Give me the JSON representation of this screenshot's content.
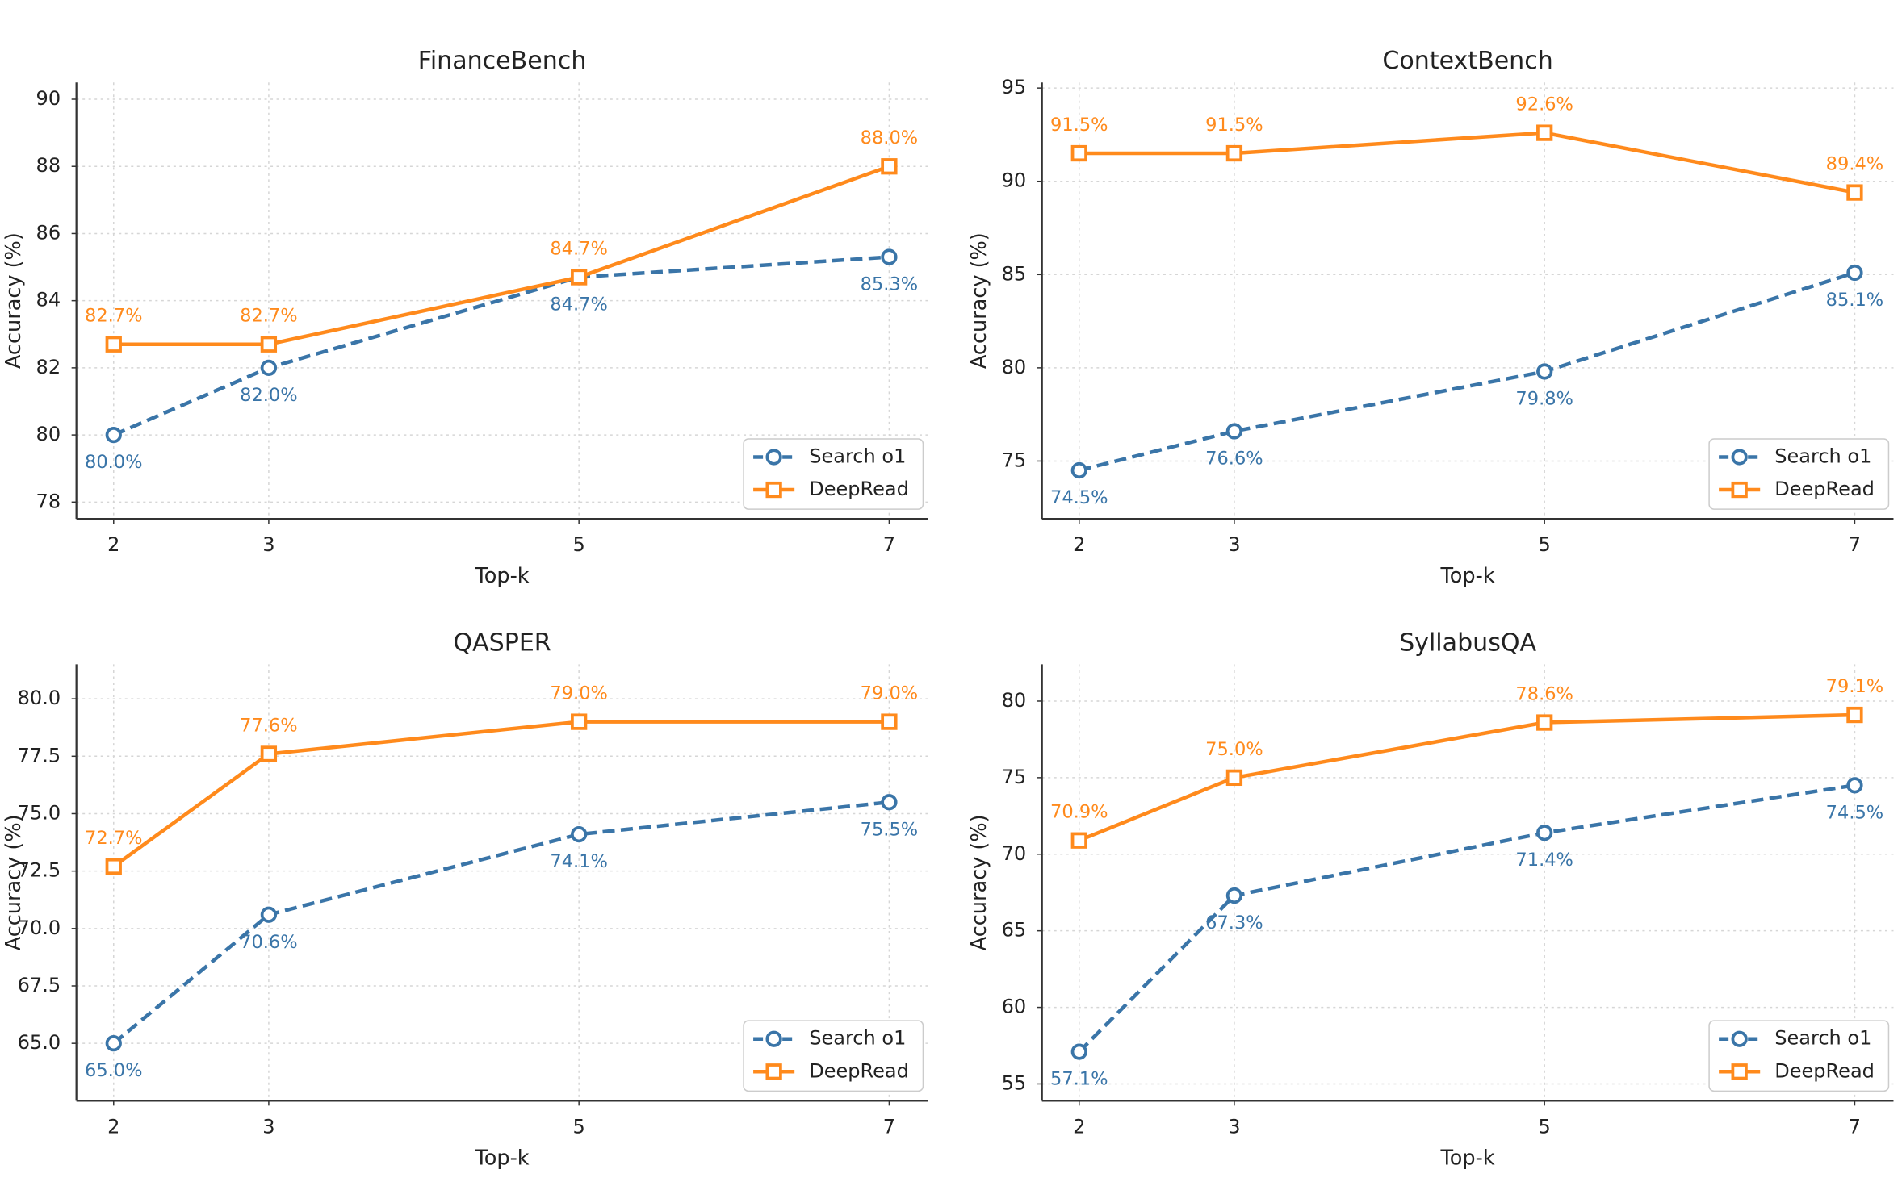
{
  "chart_data": [
    {
      "type": "line",
      "title": "FinanceBench",
      "xlabel": "Top-k",
      "ylabel": "Accuracy (%)",
      "x": [
        2,
        3,
        5,
        7
      ],
      "xlim": [
        1.76,
        7.25
      ],
      "xticks": [
        2,
        3,
        5,
        7
      ],
      "ylim": [
        77.5,
        90.5
      ],
      "yticks": [
        78,
        80,
        82,
        84,
        86,
        88,
        90
      ],
      "grid": true,
      "legend": "lower right",
      "series": [
        {
          "name": "Search o1",
          "color": "#3a75a8",
          "linestyle": "dashed",
          "marker": "circle",
          "label_position": "below",
          "values": [
            80.0,
            82.0,
            84.7,
            85.3
          ],
          "value_labels": [
            "80.0%",
            "82.0%",
            "84.7%",
            "85.3%"
          ]
        },
        {
          "name": "DeepRead",
          "color": "#ff8a1c",
          "linestyle": "solid",
          "marker": "square",
          "label_position": "above",
          "values": [
            82.7,
            82.7,
            84.7,
            88.0
          ],
          "value_labels": [
            "82.7%",
            "82.7%",
            "84.7%",
            "88.0%"
          ]
        }
      ]
    },
    {
      "type": "line",
      "title": "ContextBench",
      "xlabel": "Top-k",
      "ylabel": "Accuracy (%)",
      "x": [
        2,
        3,
        5,
        7
      ],
      "xlim": [
        1.76,
        7.25
      ],
      "xticks": [
        2,
        3,
        5,
        7
      ],
      "ylim": [
        71.9,
        95.3
      ],
      "yticks": [
        75,
        80,
        85,
        90,
        95
      ],
      "grid": true,
      "legend": "lower right",
      "series": [
        {
          "name": "Search o1",
          "color": "#3a75a8",
          "linestyle": "dashed",
          "marker": "circle",
          "label_position": "below",
          "values": [
            74.5,
            76.6,
            79.8,
            85.1
          ],
          "value_labels": [
            "74.5%",
            "76.6%",
            "79.8%",
            "85.1%"
          ]
        },
        {
          "name": "DeepRead",
          "color": "#ff8a1c",
          "linestyle": "solid",
          "marker": "square",
          "label_position": "above",
          "values": [
            91.5,
            91.5,
            92.6,
            89.4
          ],
          "value_labels": [
            "91.5%",
            "91.5%",
            "92.6%",
            "89.4%"
          ]
        }
      ]
    },
    {
      "type": "line",
      "title": "QASPER",
      "xlabel": "Top-k",
      "ylabel": "Accuracy (%)",
      "x": [
        2,
        3,
        5,
        7
      ],
      "xlim": [
        1.76,
        7.25
      ],
      "xticks": [
        2,
        3,
        5,
        7
      ],
      "ylim": [
        62.5,
        81.5
      ],
      "yticks": [
        {
          "value": 65,
          "label": "65.0"
        },
        {
          "value": 67.5,
          "label": "67.5"
        },
        {
          "value": 70,
          "label": "70.0"
        },
        {
          "value": 72.5,
          "label": "72.5"
        },
        {
          "value": 75,
          "label": "75.0"
        },
        {
          "value": 77.5,
          "label": "77.5"
        },
        {
          "value": 80,
          "label": "80.0"
        }
      ],
      "grid": true,
      "legend": "lower right",
      "series": [
        {
          "name": "Search o1",
          "color": "#3a75a8",
          "linestyle": "dashed",
          "marker": "circle",
          "label_position": "below",
          "values": [
            65.0,
            70.6,
            74.1,
            75.5
          ],
          "value_labels": [
            "65.0%",
            "70.6%",
            "74.1%",
            "75.5%"
          ]
        },
        {
          "name": "DeepRead",
          "color": "#ff8a1c",
          "linestyle": "solid",
          "marker": "square",
          "label_position": "above",
          "values": [
            72.7,
            77.6,
            79.0,
            79.0
          ],
          "value_labels": [
            "72.7%",
            "77.6%",
            "79.0%",
            "79.0%"
          ]
        }
      ]
    },
    {
      "type": "line",
      "title": "SyllabusQA",
      "xlabel": "Top-k",
      "ylabel": "Accuracy (%)",
      "x": [
        2,
        3,
        5,
        7
      ],
      "xlim": [
        1.76,
        7.25
      ],
      "xticks": [
        2,
        3,
        5,
        7
      ],
      "ylim": [
        53.9,
        82.4
      ],
      "yticks": [
        55,
        60,
        65,
        70,
        75,
        80
      ],
      "grid": true,
      "legend": "lower right",
      "series": [
        {
          "name": "Search o1",
          "color": "#3a75a8",
          "linestyle": "dashed",
          "marker": "circle",
          "label_position": "below",
          "values": [
            57.1,
            67.3,
            71.4,
            74.5
          ],
          "value_labels": [
            "57.1%",
            "67.3%",
            "71.4%",
            "74.5%"
          ]
        },
        {
          "name": "DeepRead",
          "color": "#ff8a1c",
          "linestyle": "solid",
          "marker": "square",
          "label_position": "above",
          "values": [
            70.9,
            75.0,
            78.6,
            79.1
          ],
          "value_labels": [
            "70.9%",
            "75.0%",
            "78.6%",
            "79.1%"
          ]
        }
      ]
    }
  ]
}
